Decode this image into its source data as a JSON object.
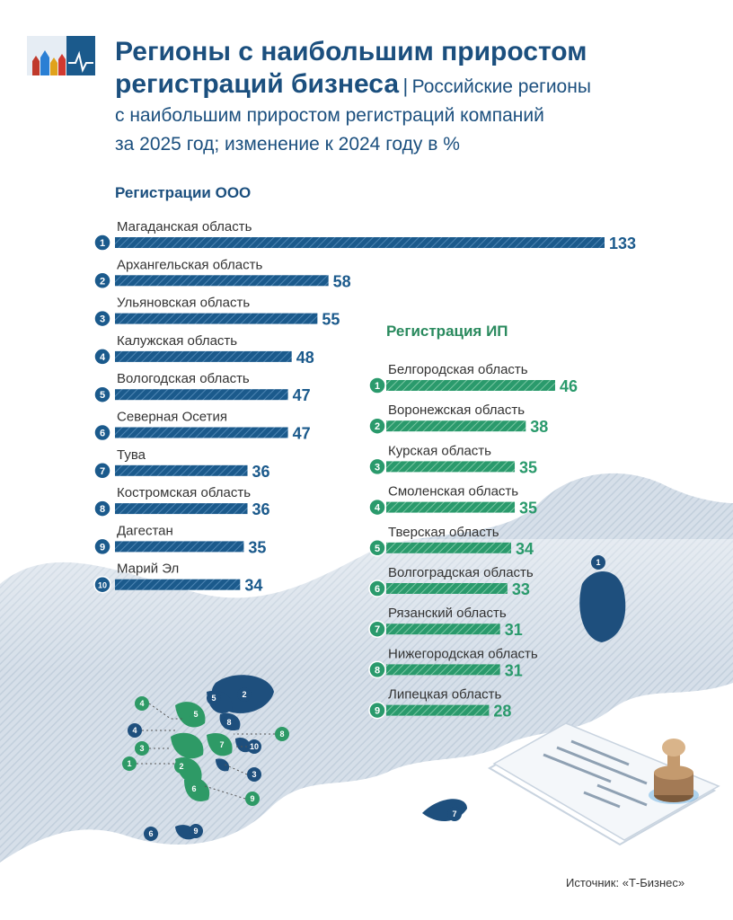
{
  "header": {
    "title_line1": "Регионы с наибольшим приростом",
    "title_line2": "регистраций бизнеса",
    "separator": "|",
    "subtitle_part1": "Российские регионы",
    "subtitle_line2": "с наибольшим приростом регистраций компаний",
    "subtitle_line3": "за 2025 год; изменение к 2024 году в %"
  },
  "source": "Источник: «Т-Бизнес»",
  "colors": {
    "ooo": "#1b5a8c",
    "ip": "#2a9a6c",
    "title": "#1b4f7e",
    "map_ooo": "#1e4f7d",
    "map_ip": "#2e9a66"
  },
  "chart_data": [
    {
      "type": "bar",
      "title": "Регистрации ООО",
      "unit": "%",
      "ranks": [
        "1",
        "2",
        "3",
        "4",
        "5",
        "6",
        "7",
        "8",
        "9",
        "10"
      ],
      "categories": [
        "Магаданская область",
        "Архангельская область",
        "Ульяновская область",
        "Калужская область",
        "Вологодская область",
        "Северная Осетия",
        "Тува",
        "Костромская область",
        "Дагестан",
        "Марий Эл"
      ],
      "values": [
        133,
        58,
        55,
        48,
        47,
        47,
        36,
        36,
        35,
        34
      ],
      "xlim": [
        0,
        133
      ]
    },
    {
      "type": "bar",
      "title": "Регистрация ИП",
      "unit": "%",
      "ranks": [
        "1",
        "2",
        "3",
        "4",
        "5",
        "6",
        "7",
        "8",
        "9"
      ],
      "categories": [
        "Белгородская область",
        "Воронежская область",
        "Курская область",
        "Смоленская область",
        "Тверская область",
        "Волгоградская область",
        "Рязанский область",
        "Нижегородская область",
        "Липецкая область"
      ],
      "values": [
        46,
        38,
        35,
        35,
        34,
        33,
        31,
        31,
        28
      ],
      "xlim": [
        0,
        46
      ]
    }
  ],
  "map_labels": {
    "ooo": [
      "1",
      "2",
      "3",
      "4",
      "5",
      "6",
      "7",
      "8",
      "9",
      "10"
    ],
    "ip": [
      "1",
      "2",
      "3",
      "4",
      "5",
      "6",
      "7",
      "8",
      "9"
    ]
  }
}
